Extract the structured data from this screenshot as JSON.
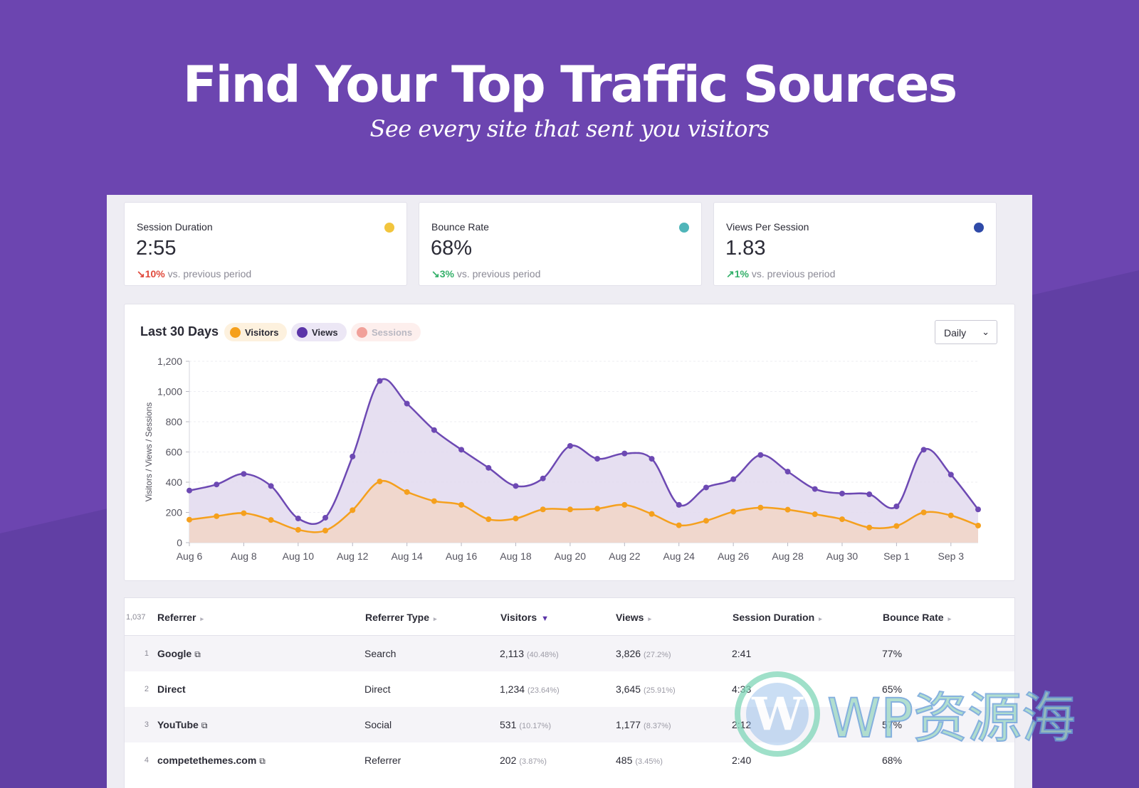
{
  "hero": {
    "title": "Find Your Top Traffic Sources",
    "subtitle": "See every site that sent you visitors"
  },
  "stats": [
    {
      "label": "Session Duration",
      "value": "2:55",
      "change_arrow": "↘",
      "change_pct": "10%",
      "change_text": "vs. previous period",
      "dot_color": "#f2c53d",
      "change_color": "#e0493b"
    },
    {
      "label": "Bounce Rate",
      "value": "68%",
      "change_arrow": "↘",
      "change_pct": "3%",
      "change_text": "vs. previous period",
      "dot_color": "#4fb5b9",
      "change_color": "#34b06a"
    },
    {
      "label": "Views Per Session",
      "value": "1.83",
      "change_arrow": "↗",
      "change_pct": "1%",
      "change_text": "vs. previous period",
      "dot_color": "#2f4aa8",
      "change_color": "#34b06a"
    }
  ],
  "chart_panel": {
    "title": "Last 30 Days",
    "legend": [
      {
        "label": "Visitors",
        "color": "#f5a01d",
        "bg": "#fdf1de",
        "text_color": "#2b2b36"
      },
      {
        "label": "Views",
        "color": "#5b35a8",
        "bg": "#ece7f5",
        "text_color": "#2b2b36"
      },
      {
        "label": "Sessions",
        "color": "#f1a19a",
        "bg": "#fdefed",
        "text_color": "#b9b8c2"
      }
    ],
    "interval_select": "Daily"
  },
  "chart_data": {
    "type": "area",
    "ylabel": "Visitors / Views / Sessions",
    "ylim": [
      0,
      1200
    ],
    "yticks": [
      "0",
      "200",
      "400",
      "600",
      "800",
      "1,000",
      "1,200"
    ],
    "x_tick_labels": [
      "Aug 6",
      "Aug 8",
      "Aug 10",
      "Aug 12",
      "Aug 14",
      "Aug 16",
      "Aug 18",
      "Aug 20",
      "Aug 22",
      "Aug 24",
      "Aug 26",
      "Aug 28",
      "Aug 30",
      "Sep 1",
      "Sep 3"
    ],
    "x": [
      "Aug 6",
      "Aug 7",
      "Aug 8",
      "Aug 9",
      "Aug 10",
      "Aug 11",
      "Aug 12",
      "Aug 13",
      "Aug 14",
      "Aug 15",
      "Aug 16",
      "Aug 17",
      "Aug 18",
      "Aug 19",
      "Aug 20",
      "Aug 21",
      "Aug 22",
      "Aug 23",
      "Aug 24",
      "Aug 25",
      "Aug 26",
      "Aug 27",
      "Aug 28",
      "Aug 29",
      "Aug 30",
      "Aug 31",
      "Sep 1",
      "Sep 2",
      "Sep 3",
      "Sep 4"
    ],
    "grid": true,
    "series": [
      {
        "name": "Views",
        "color": "#6d49b3",
        "fill": "#e3dcf0",
        "values": [
          345,
          385,
          455,
          375,
          160,
          165,
          570,
          1070,
          920,
          745,
          615,
          495,
          375,
          425,
          640,
          555,
          590,
          555,
          250,
          365,
          420,
          580,
          470,
          355,
          325,
          320,
          240,
          615,
          450,
          220
        ]
      },
      {
        "name": "Visitors",
        "color": "#f5a01d",
        "fill": "#f1d6c9",
        "values": [
          152,
          175,
          195,
          150,
          85,
          80,
          215,
          405,
          335,
          275,
          250,
          155,
          160,
          220,
          220,
          225,
          250,
          190,
          115,
          145,
          205,
          232,
          218,
          188,
          155,
          100,
          110,
          200,
          180,
          113
        ]
      }
    ]
  },
  "table": {
    "count": "1,037",
    "columns": [
      {
        "label": "Referrer",
        "sort": "▸"
      },
      {
        "label": "Referrer Type",
        "sort": "▸"
      },
      {
        "label": "Visitors",
        "sort": "▼"
      },
      {
        "label": "Views",
        "sort": "▸"
      },
      {
        "label": "Session Duration",
        "sort": "▸"
      },
      {
        "label": "Bounce Rate",
        "sort": "▸"
      }
    ],
    "rows": [
      {
        "num": "1",
        "referrer": "Google",
        "external": "⧉",
        "type": "Search",
        "visitors": "2,113",
        "visitors_pct": "(40.48%)",
        "views": "3,826",
        "views_pct": "(27.2%)",
        "duration": "2:41",
        "bounce": "77%"
      },
      {
        "num": "2",
        "referrer": "Direct",
        "external": "",
        "type": "Direct",
        "visitors": "1,234",
        "visitors_pct": "(23.64%)",
        "views": "3,645",
        "views_pct": "(25.91%)",
        "duration": "4:33",
        "bounce": "65%"
      },
      {
        "num": "3",
        "referrer": "YouTube",
        "external": "⧉",
        "type": "Social",
        "visitors": "531",
        "visitors_pct": "(10.17%)",
        "views": "1,177",
        "views_pct": "(8.37%)",
        "duration": "2:12",
        "bounce": "57%"
      },
      {
        "num": "4",
        "referrer": "competethemes.com",
        "external": "⧉",
        "type": "Referrer",
        "visitors": "202",
        "visitors_pct": "(3.87%)",
        "views": "485",
        "views_pct": "(3.45%)",
        "duration": "2:40",
        "bounce": "68%"
      }
    ]
  },
  "watermark": {
    "text": "WP资源海"
  }
}
